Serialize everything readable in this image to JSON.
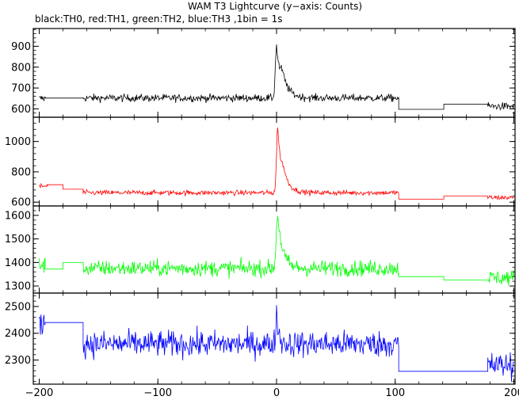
{
  "chart_data": {
    "type": "line",
    "title": "WAM T3 Lightcurve (y−axis: Counts)",
    "subtitle": "black:TH0, red:TH1, green:TH2, blue:TH3 ,1bin = 1s",
    "xlabel": "",
    "ylabel": "",
    "grid": false,
    "xlim": [
      -205,
      201
    ],
    "x_ticks": [
      -200,
      -100,
      0,
      100,
      200
    ],
    "x_tick_labels": [
      "−200",
      "−100",
      "0",
      "100",
      "200"
    ],
    "panels": [
      {
        "name": "TH0",
        "color": "#000000",
        "ylim": [
          560,
          985
        ],
        "y_ticks": [
          600,
          700,
          800,
          900
        ],
        "noise": 26,
        "segments": [
          {
            "type": "noise",
            "x0": -200,
            "x1": -195,
            "level": 650
          },
          {
            "type": "flat",
            "x0": -195,
            "x1": -163,
            "level": 652
          },
          {
            "type": "noise",
            "x0": -163,
            "x1": 103,
            "level": 652
          },
          {
            "type": "flat",
            "x0": 103,
            "x1": 141,
            "level": 598
          },
          {
            "type": "flat",
            "x0": 141,
            "x1": 178,
            "level": 622
          },
          {
            "type": "noise",
            "x0": 178,
            "x1": 200,
            "level": 612
          }
        ],
        "peaks": [
          {
            "center": 0,
            "amp": 250,
            "rise": 1.0,
            "decay": 4
          },
          {
            "center": 5,
            "amp": 60,
            "rise": 1.5,
            "decay": 6
          }
        ]
      },
      {
        "name": "TH1",
        "color": "#ff0000",
        "ylim": [
          575,
          1160
        ],
        "y_ticks": [
          600,
          800,
          1000
        ],
        "noise": 24,
        "segments": [
          {
            "type": "noise",
            "x0": -200,
            "x1": -193,
            "level": 705
          },
          {
            "type": "flat",
            "x0": -193,
            "x1": -180,
            "level": 715
          },
          {
            "type": "flat",
            "x0": -180,
            "x1": -163,
            "level": 685
          },
          {
            "type": "noise",
            "x0": -163,
            "x1": 103,
            "level": 662
          },
          {
            "type": "flat",
            "x0": 103,
            "x1": 141,
            "level": 620
          },
          {
            "type": "flat",
            "x0": 141,
            "x1": 178,
            "level": 640
          },
          {
            "type": "noise",
            "x0": 178,
            "x1": 200,
            "level": 630
          }
        ],
        "peaks": [
          {
            "center": 1,
            "amp": 430,
            "rise": 1.0,
            "decay": 3.5
          },
          {
            "center": 6,
            "amp": 70,
            "rise": 1.5,
            "decay": 6
          }
        ]
      },
      {
        "name": "TH2",
        "color": "#00ff00",
        "ylim": [
          1270,
          1640
        ],
        "y_ticks": [
          1300,
          1400,
          1500,
          1600
        ],
        "noise": 48,
        "segments": [
          {
            "type": "noise",
            "x0": -200,
            "x1": -195,
            "level": 1390
          },
          {
            "type": "flat",
            "x0": -195,
            "x1": -180,
            "level": 1372
          },
          {
            "type": "flat",
            "x0": -180,
            "x1": -163,
            "level": 1400
          },
          {
            "type": "noise",
            "x0": -163,
            "x1": 103,
            "level": 1375
          },
          {
            "type": "flat",
            "x0": 103,
            "x1": 141,
            "level": 1340
          },
          {
            "type": "flat",
            "x0": 141,
            "x1": 178,
            "level": 1325
          },
          {
            "type": "noise",
            "x0": 178,
            "x1": 200,
            "level": 1335
          }
        ],
        "peaks": [
          {
            "center": 1,
            "amp": 230,
            "rise": 1.2,
            "decay": 4
          }
        ]
      },
      {
        "name": "TH3",
        "color": "#0000ff",
        "ylim": [
          2210,
          2550
        ],
        "y_ticks": [
          2300,
          2400,
          2500
        ],
        "noise": 70,
        "segments": [
          {
            "type": "noise",
            "x0": -200,
            "x1": -195,
            "level": 2440
          },
          {
            "type": "flat",
            "x0": -195,
            "x1": -163,
            "level": 2440
          },
          {
            "type": "noise",
            "x0": -163,
            "x1": 103,
            "level": 2360
          },
          {
            "type": "flat",
            "x0": 103,
            "x1": 141,
            "level": 2258
          },
          {
            "type": "flat",
            "x0": 141,
            "x1": 178,
            "level": 2258
          },
          {
            "type": "noise",
            "x0": 178,
            "x1": 200,
            "level": 2280
          }
        ],
        "peaks": [
          {
            "center": 0,
            "amp": 110,
            "rise": 0.8,
            "decay": 2
          }
        ]
      }
    ]
  }
}
